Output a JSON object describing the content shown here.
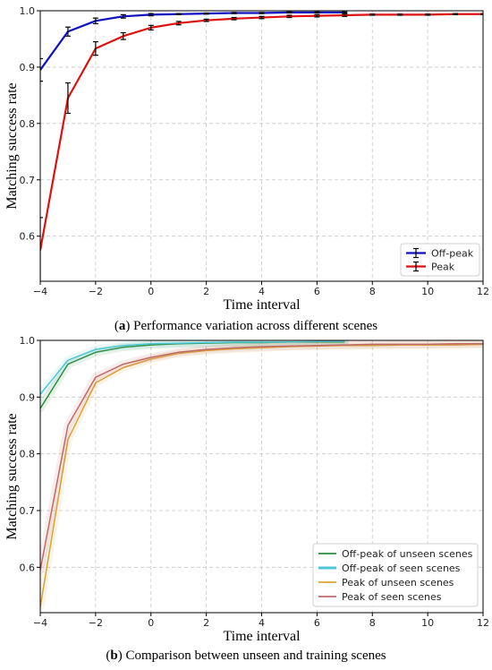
{
  "chart_data": [
    {
      "type": "line",
      "xlabel": "Time interval",
      "ylabel": "Matching success rate",
      "xlim": [
        -4,
        12
      ],
      "ylim": [
        0.52,
        1.0
      ],
      "xticks": [
        "−4",
        "−2",
        "0",
        "2",
        "4",
        "6",
        "8",
        "10",
        "12"
      ],
      "yticks": [
        "0.6",
        "0.7",
        "0.8",
        "0.9",
        "1.0"
      ],
      "grid": true,
      "legend_position": "bottom-right",
      "error_bars": true,
      "series": [
        {
          "name": "Off-peak",
          "color": "#1010c0",
          "x": [
            -4,
            -3,
            -2,
            -1,
            0,
            1,
            2,
            3,
            4,
            5,
            6,
            7
          ],
          "y": [
            0.895,
            0.963,
            0.982,
            0.99,
            0.993,
            0.994,
            0.995,
            0.996,
            0.996,
            0.997,
            0.997,
            0.997
          ],
          "err": [
            0.02,
            0.008,
            0.005,
            0.003,
            0.002,
            0.001,
            0.001,
            0.001,
            0.001,
            0.001,
            0.001,
            0.001
          ]
        },
        {
          "name": "Peak",
          "color": "#e01010",
          "x": [
            -4,
            -3,
            -2,
            -1,
            0,
            1,
            2,
            3,
            4,
            5,
            6,
            7,
            8,
            9,
            10,
            11,
            12
          ],
          "y": [
            0.575,
            0.845,
            0.933,
            0.955,
            0.97,
            0.978,
            0.983,
            0.986,
            0.988,
            0.99,
            0.991,
            0.992,
            0.993,
            0.993,
            0.993,
            0.994,
            0.994
          ],
          "err": [
            0.058,
            0.027,
            0.012,
            0.006,
            0.004,
            0.003,
            0.002,
            0.002,
            0.002,
            0.002,
            0.002,
            0.002,
            0.001,
            0.001,
            0.001,
            0.001,
            0.001
          ]
        }
      ]
    },
    {
      "type": "line",
      "xlabel": "Time interval",
      "ylabel": "Matching success rate",
      "xlim": [
        -4,
        12
      ],
      "ylim": [
        0.52,
        1.0
      ],
      "xticks": [
        "−4",
        "−2",
        "0",
        "2",
        "4",
        "6",
        "8",
        "10",
        "12"
      ],
      "yticks": [
        "0.6",
        "0.7",
        "0.8",
        "0.9",
        "1.0"
      ],
      "grid": true,
      "legend_position": "bottom-right",
      "series": [
        {
          "name": "Off-peak of unseen scenes",
          "color": "#2e8b3a",
          "x": [
            -4,
            -3,
            -2,
            -1,
            0,
            1,
            2,
            3,
            4,
            5,
            6,
            7
          ],
          "y": [
            0.88,
            0.958,
            0.979,
            0.988,
            0.992,
            0.994,
            0.995,
            0.996,
            0.996,
            0.997,
            0.997,
            0.997
          ]
        },
        {
          "name": "Off-peak of seen scenes",
          "color": "#4fc7d6",
          "x": [
            -4,
            -3,
            -2,
            -1,
            0,
            1,
            2,
            3,
            4,
            5,
            6,
            7
          ],
          "y": [
            0.905,
            0.965,
            0.984,
            0.991,
            0.994,
            0.995,
            0.996,
            0.997,
            0.997,
            0.997,
            0.998,
            0.998
          ]
        },
        {
          "name": "Peak of unseen scenes",
          "color": "#d9a23a",
          "x": [
            -4,
            -3,
            -2,
            -1,
            0,
            1,
            2,
            3,
            4,
            5,
            6,
            7,
            8,
            9,
            10,
            11,
            12
          ],
          "y": [
            0.53,
            0.825,
            0.925,
            0.952,
            0.967,
            0.977,
            0.982,
            0.985,
            0.987,
            0.989,
            0.99,
            0.991,
            0.991,
            0.992,
            0.992,
            0.992,
            0.993
          ]
        },
        {
          "name": "Peak of seen scenes",
          "color": "#c06a6a",
          "x": [
            -4,
            -3,
            -2,
            -1,
            0,
            1,
            2,
            3,
            4,
            5,
            6,
            7,
            8,
            9,
            10,
            11,
            12
          ],
          "y": [
            0.595,
            0.85,
            0.935,
            0.958,
            0.97,
            0.979,
            0.984,
            0.987,
            0.989,
            0.99,
            0.991,
            0.992,
            0.993,
            0.993,
            0.993,
            0.994,
            0.994
          ]
        }
      ]
    }
  ],
  "captions": {
    "a_letter": "a",
    "a_text": " Performance variation across different scenes",
    "b_letter": "b",
    "b_text": " Comparison between unseen and training scenes"
  }
}
